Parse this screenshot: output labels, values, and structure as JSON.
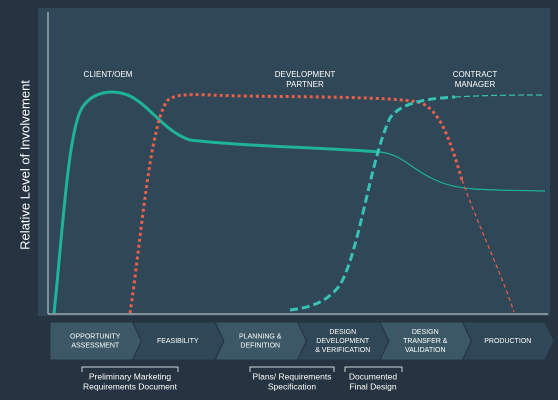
{
  "y_axis_label": "Relative Level of Involvement",
  "curve_labels": [
    {
      "lines": [
        "CLIENT/OEM"
      ]
    },
    {
      "lines": [
        "DEVELOPMENT",
        "PARTNER"
      ]
    },
    {
      "lines": [
        "CONTRACT",
        "MANAGER"
      ]
    }
  ],
  "phases": [
    {
      "lines": [
        "OPPORTUNITY",
        "ASSESSMENT"
      ]
    },
    {
      "lines": [
        "FEASIBILITY"
      ]
    },
    {
      "lines": [
        "PLANNING &",
        "DEFINITION"
      ]
    },
    {
      "lines": [
        "DESIGN",
        "DEVELOPMENT",
        "& VERIFICATION"
      ]
    },
    {
      "lines": [
        "DESIGN",
        "TRANSFER &",
        "VALIDATION"
      ]
    },
    {
      "lines": [
        "PRODUCTION"
      ]
    }
  ],
  "deliverables": [
    {
      "lines": [
        "Preliminary Marketing",
        "Requirements Document"
      ]
    },
    {
      "lines": [
        "Plans/ Requirements",
        "Specification"
      ]
    },
    {
      "lines": [
        "Documented",
        "Final Design"
      ]
    }
  ]
}
